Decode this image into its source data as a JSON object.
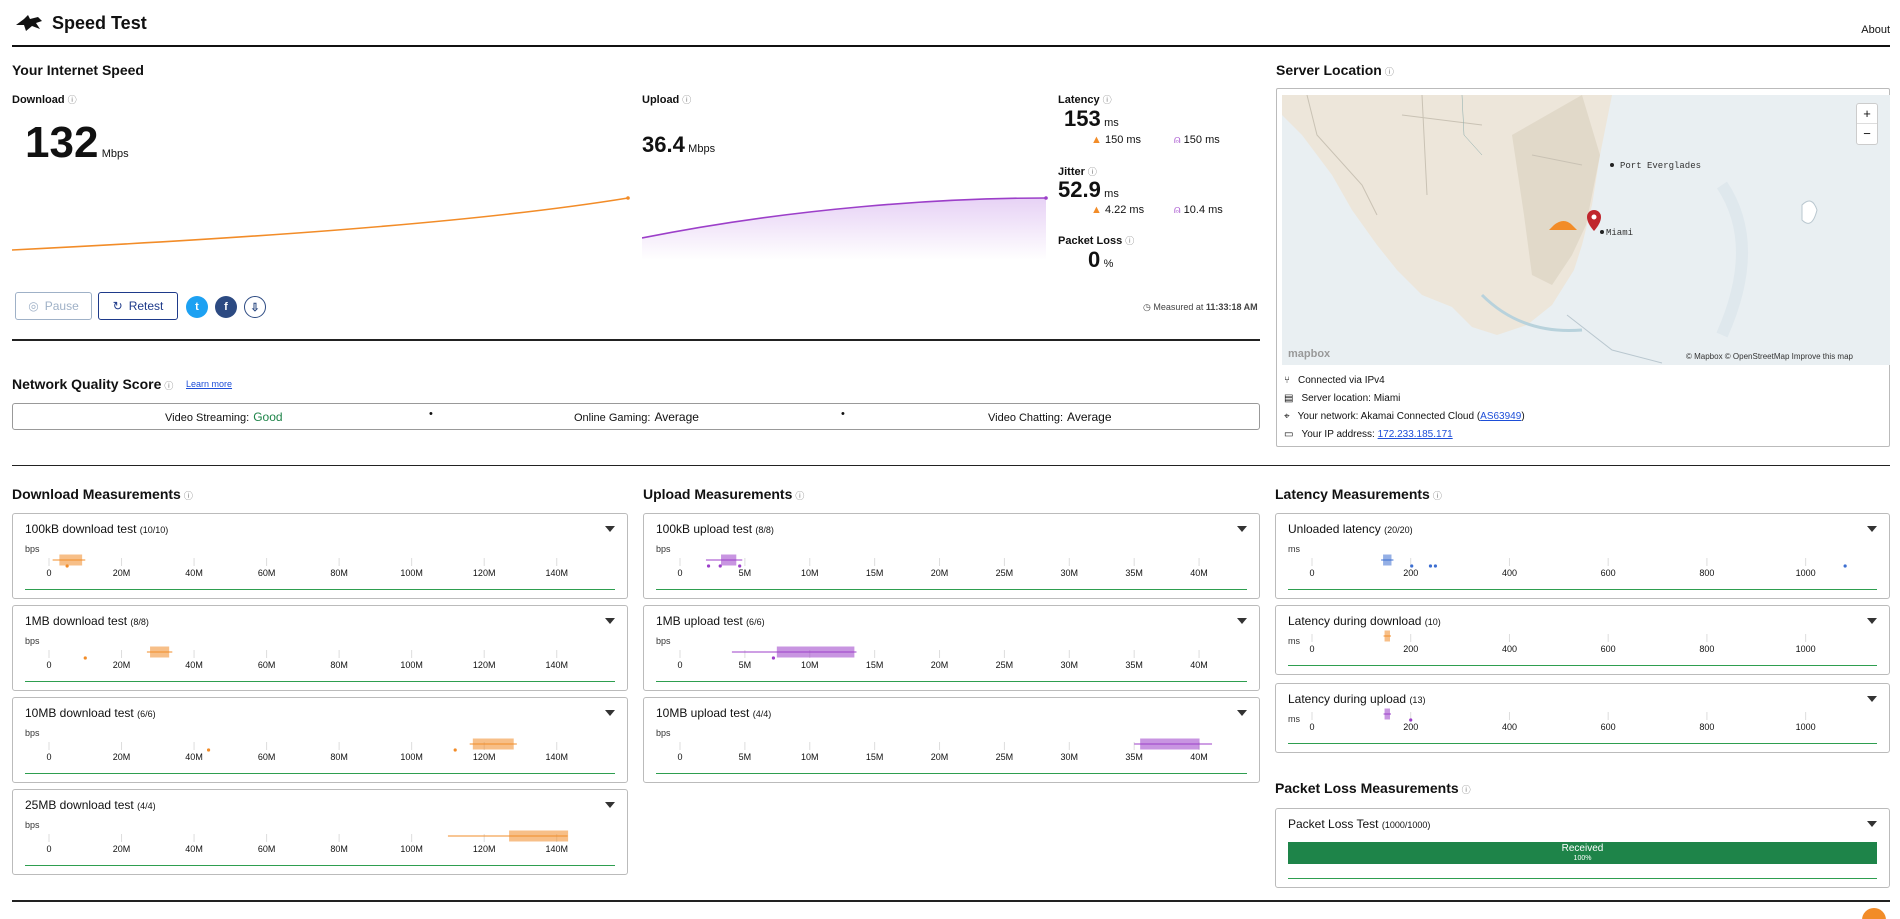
{
  "header": {
    "title": "Speed Test",
    "about": "About"
  },
  "speed": {
    "section_title": "Your Internet Speed",
    "download": {
      "label": "Download",
      "value": "132",
      "unit": "Mbps"
    },
    "upload": {
      "label": "Upload",
      "value": "36.4",
      "unit": "Mbps"
    },
    "latency": {
      "label": "Latency",
      "value": "153",
      "unit": "ms",
      "down": "150 ms",
      "up": "150 ms"
    },
    "jitter": {
      "label": "Jitter",
      "value": "52.9",
      "unit": "ms",
      "down": "4.22 ms",
      "up": "10.4 ms"
    },
    "packet_loss": {
      "label": "Packet Loss",
      "value": "0",
      "unit": "%"
    },
    "buttons": {
      "pause": "Pause",
      "retest": "Retest"
    },
    "measured_prefix": "Measured at",
    "measured_time": "11:33:18 AM"
  },
  "nq": {
    "title": "Network Quality Score",
    "learn_more": "Learn more",
    "items": [
      {
        "label": "Video Streaming:",
        "value": "Good"
      },
      {
        "label": "Online Gaming:",
        "value": "Average"
      },
      {
        "label": "Video Chatting:",
        "value": "Average"
      }
    ]
  },
  "server": {
    "title": "Server Location",
    "map_labels": {
      "port": "Port Everglades",
      "city": "Miami",
      "brand": "mapbox",
      "attribution": "© Mapbox © OpenStreetMap  Improve this map"
    },
    "rows": [
      {
        "text": "Connected via IPv4"
      },
      {
        "text": "Server location: Miami"
      },
      {
        "text": "Your network: Akamai Connected Cloud (",
        "link": "AS63949",
        "after": ")"
      },
      {
        "text": "Your IP address: ",
        "link": "172.233.185.171",
        "after": ""
      }
    ]
  },
  "download_meas": {
    "title": "Download Measurements",
    "unit": "bps",
    "ticks": [
      "0",
      "20M",
      "40M",
      "60M",
      "80M",
      "100M",
      "120M",
      "140M"
    ],
    "cards": [
      {
        "title": "100kB download test",
        "count": "(10/10)"
      },
      {
        "title": "1MB download test",
        "count": "(8/8)"
      },
      {
        "title": "10MB download test",
        "count": "(6/6)"
      },
      {
        "title": "25MB download test",
        "count": "(4/4)"
      }
    ]
  },
  "upload_meas": {
    "title": "Upload Measurements",
    "unit": "bps",
    "ticks": [
      "0",
      "5M",
      "10M",
      "15M",
      "20M",
      "25M",
      "30M",
      "35M",
      "40M"
    ],
    "cards": [
      {
        "title": "100kB upload test",
        "count": "(8/8)"
      },
      {
        "title": "1MB upload test",
        "count": "(6/6)"
      },
      {
        "title": "10MB upload test",
        "count": "(4/4)"
      }
    ]
  },
  "latency_meas": {
    "title": "Latency Measurements",
    "unit": "ms",
    "ticks": [
      "0",
      "200",
      "400",
      "600",
      "800",
      "1000"
    ],
    "cards": [
      {
        "title": "Unloaded latency",
        "count": "(20/20)"
      },
      {
        "title": "Latency during download",
        "count": "(10)"
      },
      {
        "title": "Latency during upload",
        "count": "(13)"
      }
    ]
  },
  "packet_meas": {
    "title": "Packet Loss Measurements",
    "card_title": "Packet Loss Test",
    "count": "(1000/1000)",
    "bar_label": "Received",
    "bar_pct": "100%"
  },
  "colors": {
    "download": "#f28c28",
    "upload": "#9c3fc9",
    "latency_unloaded": "#3d6fd1",
    "good": "#1e8449"
  }
}
